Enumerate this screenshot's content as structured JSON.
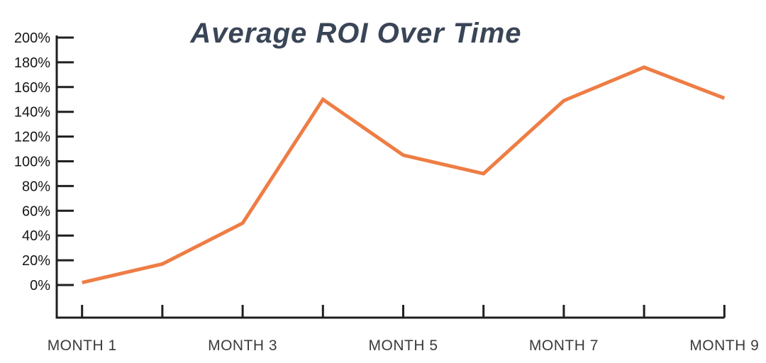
{
  "chart_data": {
    "type": "line",
    "title": "Average ROI Over Time",
    "xlabel": "",
    "ylabel": "",
    "x": [
      1,
      2,
      3,
      4,
      5,
      6,
      7,
      8,
      9
    ],
    "series": [
      {
        "name": "Average ROI",
        "values": [
          2,
          17,
          50,
          150,
          105,
          90,
          149,
          176,
          151
        ]
      }
    ],
    "x_tick_count": 9,
    "x_label_positions": [
      1,
      3,
      5,
      7,
      9
    ],
    "x_tick_labels": [
      "MONTH 1",
      "MONTH 3",
      "MONTH 5",
      "MONTH 7",
      "MONTH 9"
    ],
    "y_tick_labels": [
      "0%",
      "20%",
      "40%",
      "60%",
      "80%",
      "100%",
      "120%",
      "140%",
      "160%",
      "180%",
      "200%"
    ],
    "y_tick_step": 20,
    "ylim": [
      0,
      200
    ],
    "grid": false,
    "legend": "none",
    "colors": {
      "line": "#EE7D45",
      "axis": "#1F1F1F",
      "title": "#3A4557",
      "x_labels": "#3B3B3B",
      "y_labels": "#161616",
      "background": "#FFFFFF"
    }
  }
}
